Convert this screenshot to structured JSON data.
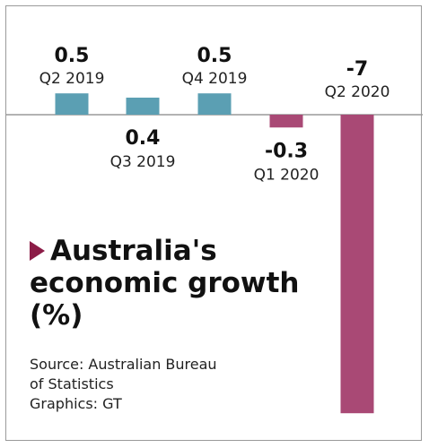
{
  "chart_data": {
    "type": "bar",
    "title_lines": [
      "Australia's",
      "economic growth",
      "(%)"
    ],
    "categories": [
      "Q2 2019",
      "Q3 2019",
      "Q4 2019",
      "Q1 2020",
      "Q2 2020"
    ],
    "values": [
      0.5,
      0.4,
      0.5,
      -0.3,
      -7
    ],
    "value_labels": [
      "0.5",
      "0.4",
      "0.5",
      "-0.3",
      "-7"
    ],
    "colors": {
      "positive": "#5b9fb3",
      "negative": "#a94975",
      "marker": "#8c1c47",
      "axis": "#9a9a9a"
    },
    "ylim": [
      -7,
      0.5
    ],
    "grid": false,
    "legend": "none"
  },
  "source": {
    "lines": [
      "Source: Australian Bureau",
      "of Statistics",
      "Graphics: GT"
    ]
  }
}
